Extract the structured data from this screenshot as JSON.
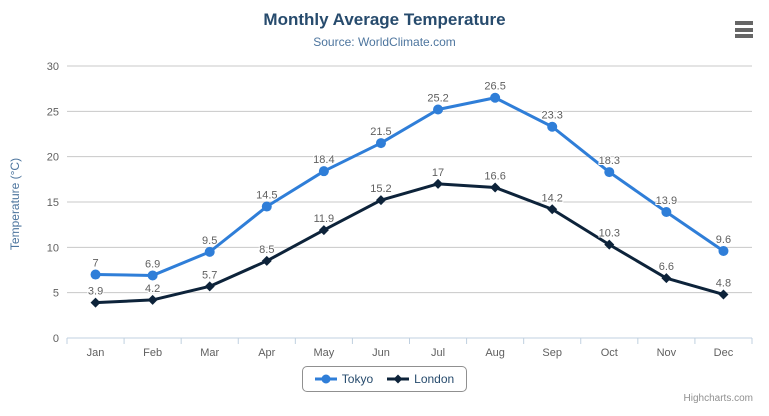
{
  "chart_data": {
    "type": "line",
    "title": "Monthly Average Temperature",
    "subtitle": "Source: WorldClimate.com",
    "categories": [
      "Jan",
      "Feb",
      "Mar",
      "Apr",
      "May",
      "Jun",
      "Jul",
      "Aug",
      "Sep",
      "Oct",
      "Nov",
      "Dec"
    ],
    "series": [
      {
        "name": "Tokyo",
        "color": "#2f7ed8",
        "marker": "circle",
        "values": [
          7,
          6.9,
          9.5,
          14.5,
          18.4,
          21.5,
          25.2,
          26.5,
          23.3,
          18.3,
          13.9,
          9.6
        ]
      },
      {
        "name": "London",
        "color": "#0d233a",
        "marker": "diamond",
        "values": [
          3.9,
          4.2,
          5.7,
          8.5,
          11.9,
          15.2,
          17,
          16.6,
          14.2,
          10.3,
          6.6,
          4.8
        ]
      }
    ],
    "xlabel": "",
    "ylabel": "Temperature (°C)",
    "ylim": [
      0,
      30
    ],
    "ytick_interval": 5,
    "grid": true,
    "legend_position": "bottom",
    "data_labels": true
  },
  "credits": {
    "label": "Highcharts.com"
  },
  "colors": {
    "title": "#274b6d",
    "subtitle": "#4d759e",
    "axis_label": "#606060",
    "data_label": "#606060",
    "gridline": "#c8c8c8",
    "axis_line": "#c0d0e0",
    "legend_border": "#909090",
    "legend_text": "#274b6d",
    "credits_text": "#909090",
    "menu_icon": "#666666",
    "background": "#ffffff"
  }
}
